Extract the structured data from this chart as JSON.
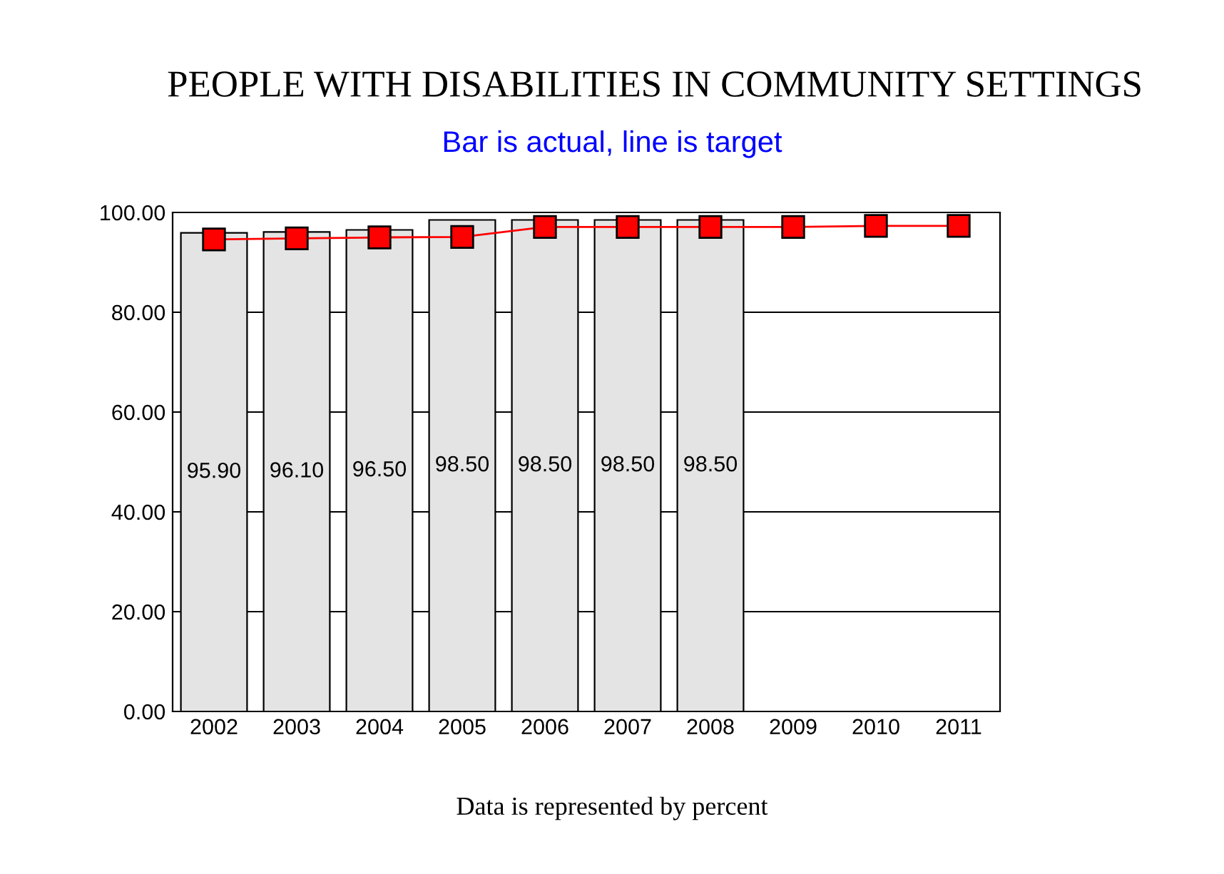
{
  "chart_data": {
    "type": "bar",
    "title": "PEOPLE WITH DISABILITIES IN COMMUNITY SETTINGS",
    "subtitle": "Bar is actual, line is target",
    "categories": [
      "2002",
      "2003",
      "2004",
      "2005",
      "2006",
      "2007",
      "2008",
      "2009",
      "2010",
      "2011"
    ],
    "series": [
      {
        "color": "#e4e4e4",
        "values": [
          95.9,
          96.1,
          96.5,
          98.5,
          98.5,
          98.5,
          98.5,
          null,
          null,
          null
        ],
        "value_labels": [
          "95.90",
          "96.10",
          "96.50",
          "98.50",
          "98.50",
          "98.50",
          "98.50",
          null,
          null,
          null
        ]
      },
      {
        "type": "line",
        "color": "#ff0000",
        "values": [
          94.6,
          94.8,
          95.0,
          95.1,
          97.1,
          97.1,
          97.1,
          97.1,
          97.3,
          97.3
        ],
        "marker": "square"
      }
    ],
    "ylim": [
      0,
      100
    ],
    "yticks": [
      {
        "value": 0,
        "label": "0.00"
      },
      {
        "value": 20,
        "label": "20.00"
      },
      {
        "value": 40,
        "label": "40.00"
      },
      {
        "value": 60,
        "label": "60.00"
      },
      {
        "value": 80,
        "label": "80.00"
      },
      {
        "value": 100,
        "label": "100.00"
      }
    ],
    "grid": "y",
    "legend": false,
    "annotations": [
      "Data is represented by percent"
    ]
  }
}
